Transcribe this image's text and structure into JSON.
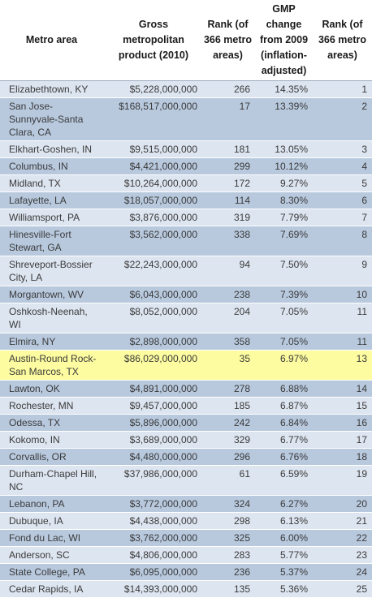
{
  "table": {
    "headers": {
      "name": "Metro area",
      "gmp": "Gross metropolitan product (2010)",
      "rank": "Rank (of 366 metro areas)",
      "change": "GMP change from 2009 (inflation-adjusted)",
      "rank_change": "Rank (of 366 metro areas)"
    },
    "rows": [
      {
        "name": "Elizabethtown, KY",
        "gmp": "$5,228,000,000",
        "rank": "266",
        "change": "14.35%",
        "rank_change": "1"
      },
      {
        "name": "San Jose-Sunnyvale-Santa Clara, CA",
        "gmp": "$168,517,000,000",
        "rank": "17",
        "change": "13.39%",
        "rank_change": "2"
      },
      {
        "name": "Elkhart-Goshen, IN",
        "gmp": "$9,515,000,000",
        "rank": "181",
        "change": "13.05%",
        "rank_change": "3"
      },
      {
        "name": "Columbus, IN",
        "gmp": "$4,421,000,000",
        "rank": "299",
        "change": "10.12%",
        "rank_change": "4"
      },
      {
        "name": "Midland, TX",
        "gmp": "$10,264,000,000",
        "rank": "172",
        "change": "9.27%",
        "rank_change": "5"
      },
      {
        "name": "Lafayette, LA",
        "gmp": "$18,057,000,000",
        "rank": "114",
        "change": "8.30%",
        "rank_change": "6"
      },
      {
        "name": "Williamsport, PA",
        "gmp": "$3,876,000,000",
        "rank": "319",
        "change": "7.79%",
        "rank_change": "7"
      },
      {
        "name": "Hinesville-Fort Stewart, GA",
        "gmp": "$3,562,000,000",
        "rank": "338",
        "change": "7.69%",
        "rank_change": "8"
      },
      {
        "name": "Shreveport-Bossier City, LA",
        "gmp": "$22,243,000,000",
        "rank": "94",
        "change": "7.50%",
        "rank_change": "9"
      },
      {
        "name": "Morgantown, WV",
        "gmp": "$6,043,000,000",
        "rank": "238",
        "change": "7.39%",
        "rank_change": "10"
      },
      {
        "name": "Oshkosh-Neenah, WI",
        "gmp": "$8,052,000,000",
        "rank": "204",
        "change": "7.05%",
        "rank_change": "11"
      },
      {
        "name": "Elmira, NY",
        "gmp": "$2,898,000,000",
        "rank": "358",
        "change": "7.05%",
        "rank_change": "11"
      },
      {
        "name": "Austin-Round Rock-San Marcos, TX",
        "gmp": "$86,029,000,000",
        "rank": "35",
        "change": "6.97%",
        "rank_change": "13"
      },
      {
        "name": "Lawton, OK",
        "gmp": "$4,891,000,000",
        "rank": "278",
        "change": "6.88%",
        "rank_change": "14"
      },
      {
        "name": "Rochester, MN",
        "gmp": "$9,457,000,000",
        "rank": "185",
        "change": "6.87%",
        "rank_change": "15"
      },
      {
        "name": "Odessa, TX",
        "gmp": "$5,896,000,000",
        "rank": "242",
        "change": "6.84%",
        "rank_change": "16"
      },
      {
        "name": "Kokomo, IN",
        "gmp": "$3,689,000,000",
        "rank": "329",
        "change": "6.77%",
        "rank_change": "17"
      },
      {
        "name": "Corvallis, OR",
        "gmp": "$4,480,000,000",
        "rank": "296",
        "change": "6.76%",
        "rank_change": "18"
      },
      {
        "name": "Durham-Chapel Hill, NC",
        "gmp": "$37,986,000,000",
        "rank": "61",
        "change": "6.59%",
        "rank_change": "19"
      },
      {
        "name": "Lebanon, PA",
        "gmp": "$3,772,000,000",
        "rank": "324",
        "change": "6.27%",
        "rank_change": "20"
      },
      {
        "name": "Dubuque, IA",
        "gmp": "$4,438,000,000",
        "rank": "298",
        "change": "6.13%",
        "rank_change": "21"
      },
      {
        "name": "Fond du Lac, WI",
        "gmp": "$3,762,000,000",
        "rank": "325",
        "change": "6.00%",
        "rank_change": "22"
      },
      {
        "name": "Anderson, SC",
        "gmp": "$4,806,000,000",
        "rank": "283",
        "change": "5.77%",
        "rank_change": "23"
      },
      {
        "name": "State College, PA",
        "gmp": "$6,095,000,000",
        "rank": "236",
        "change": "5.37%",
        "rank_change": "24"
      },
      {
        "name": "Cedar Rapids, IA",
        "gmp": "$14,393,000,000",
        "rank": "135",
        "change": "5.36%",
        "rank_change": "25"
      }
    ]
  },
  "colors": {
    "row_light": "#dde5f0",
    "row_dark": "#b8c9de",
    "highlight": "#fdfca0"
  },
  "highlighted_metro": "Austin-Round Rock-San Marcos, TX"
}
